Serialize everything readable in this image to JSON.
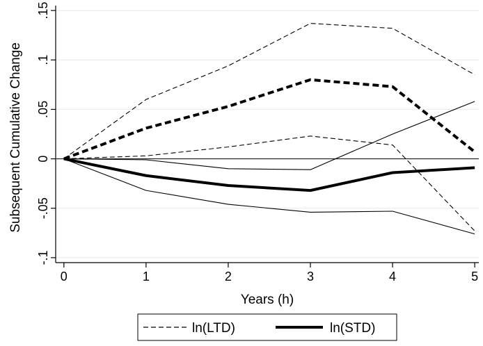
{
  "chart_data": {
    "type": "line",
    "xlabel": "Years (h)",
    "ylabel": "Subsequent Cumulative Change",
    "x": [
      0,
      1,
      2,
      3,
      4,
      5
    ],
    "xlim": [
      -0.1,
      5.05
    ],
    "ylim": [
      -0.105,
      0.155
    ],
    "x_ticks": [
      "0",
      "1",
      "2",
      "3",
      "4",
      "5"
    ],
    "y_ticks": [
      {
        "value": 0.15,
        "label": ".15"
      },
      {
        "value": 0.1,
        "label": ".1"
      },
      {
        "value": 0.05,
        "label": ".05"
      },
      {
        "value": 0,
        "label": "0"
      },
      {
        "value": -0.05,
        "label": "-.05"
      },
      {
        "value": -0.1,
        "label": "-.1"
      }
    ],
    "grid": true,
    "reference_line_y": 0,
    "series": [
      {
        "name": "ln(LTD)",
        "role": "estimate",
        "style": "dashed",
        "weight": "bold",
        "values": [
          0,
          0.031,
          0.053,
          0.08,
          0.073,
          0.007
        ]
      },
      {
        "name": "ln(LTD)",
        "role": "upper bound",
        "style": "dashed",
        "weight": "thin",
        "values": [
          0,
          0.06,
          0.094,
          0.137,
          0.132,
          0.085
        ]
      },
      {
        "name": "ln(LTD)",
        "role": "lower bound",
        "style": "dashed",
        "weight": "thin",
        "values": [
          0,
          0.003,
          0.012,
          0.023,
          0.014,
          -0.073
        ]
      },
      {
        "name": "ln(STD)",
        "role": "estimate",
        "style": "solid",
        "weight": "bold",
        "values": [
          0,
          -0.017,
          -0.027,
          -0.032,
          -0.014,
          -0.009
        ]
      },
      {
        "name": "ln(STD)",
        "role": "upper bound",
        "style": "solid",
        "weight": "thin",
        "values": [
          0,
          -0.001,
          -0.01,
          -0.011,
          0.025,
          0.058
        ]
      },
      {
        "name": "ln(STD)",
        "role": "lower bound",
        "style": "solid",
        "weight": "thin",
        "values": [
          0,
          -0.032,
          -0.046,
          -0.054,
          -0.053,
          -0.076
        ]
      }
    ],
    "legend": {
      "placement": "bottom",
      "entries": [
        {
          "label": "ln(LTD)",
          "style": "dashed"
        },
        {
          "label": "ln(STD)",
          "style": "solid-bold"
        }
      ]
    }
  }
}
